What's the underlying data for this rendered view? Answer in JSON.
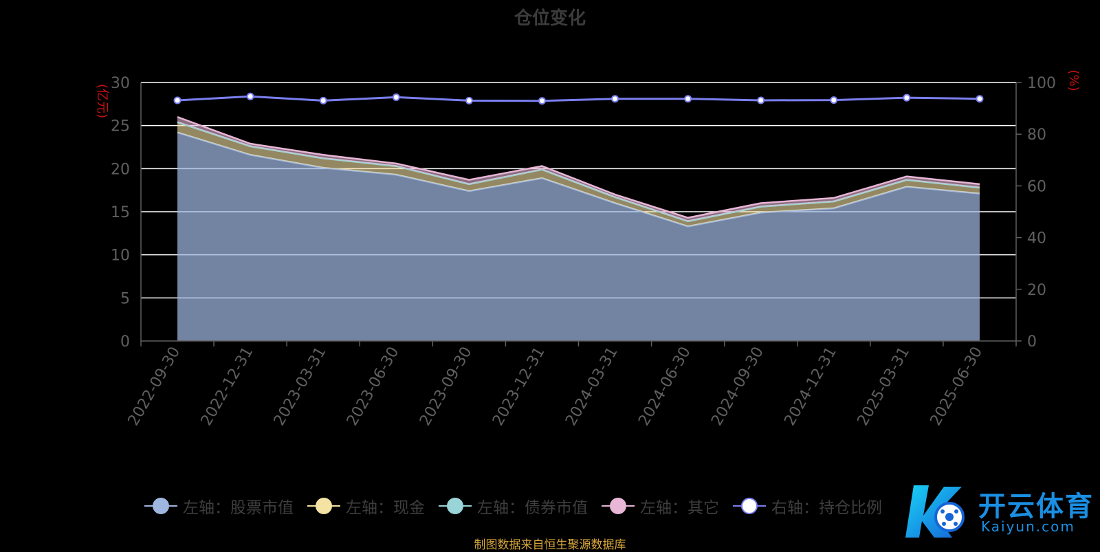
{
  "chart_data": {
    "type": "area",
    "title": "仓位变化",
    "left_axis_label": "(亿元)",
    "right_axis_label": "(%)",
    "left_ylim": [
      0,
      30
    ],
    "left_ticks": [
      0,
      5,
      10,
      15,
      20,
      25,
      30
    ],
    "right_ylim": [
      0,
      100
    ],
    "right_ticks": [
      0,
      20,
      40,
      60,
      80,
      100
    ],
    "grid": true,
    "legend_position": "bottom",
    "categories": [
      "2022-09-30",
      "2022-12-31",
      "2023-03-31",
      "2023-06-30",
      "2023-09-30",
      "2023-12-31",
      "2024-03-31",
      "2024-06-30",
      "2024-09-30",
      "2024-12-31",
      "2025-03-31",
      "2025-06-30"
    ],
    "series": [
      {
        "name": "左轴：股票市值",
        "type": "stacked-area",
        "axis": "left",
        "color": "#9fb7e0",
        "values": [
          24.2,
          21.6,
          20.1,
          19.3,
          17.4,
          18.9,
          16.0,
          13.3,
          14.9,
          15.4,
          17.9,
          17.1
        ]
      },
      {
        "name": "左轴：现金",
        "type": "stacked-area",
        "axis": "left",
        "color": "#f5e3a3",
        "values": [
          1.2,
          1.0,
          1.1,
          1.0,
          0.8,
          1.0,
          0.7,
          0.6,
          0.7,
          0.8,
          0.8,
          0.7
        ]
      },
      {
        "name": "左轴：债券市值",
        "type": "stacked-area",
        "axis": "left",
        "color": "#99d5d8",
        "values": [
          0,
          0,
          0,
          0,
          0,
          0,
          0,
          0,
          0,
          0,
          0,
          0
        ]
      },
      {
        "name": "左轴：其它",
        "type": "stacked-area",
        "axis": "left",
        "color": "#e8b6d6",
        "values": [
          0.6,
          0.3,
          0.4,
          0.3,
          0.5,
          0.4,
          0.3,
          0.4,
          0.4,
          0.4,
          0.4,
          0.4
        ]
      },
      {
        "name": "右轴：持仓比例",
        "type": "line",
        "axis": "right",
        "color": "#7b7ff0",
        "values": [
          93.1,
          94.6,
          93.0,
          94.3,
          93.0,
          92.9,
          93.7,
          93.7,
          93.1,
          93.2,
          94.1,
          93.7
        ]
      }
    ]
  },
  "legend": [
    {
      "label": "左轴：股票市值",
      "color": "#9fb7e0"
    },
    {
      "label": "左轴：现金",
      "color": "#f5e3a3"
    },
    {
      "label": "左轴：债券市值",
      "color": "#99d5d8"
    },
    {
      "label": "左轴：其它",
      "color": "#e8b6d6"
    },
    {
      "label": "右轴：持仓比例",
      "color": "#7b7ff0"
    }
  ],
  "source_note": "制图数据来自恒生聚源数据库",
  "watermark": {
    "brand_cn": "开云体育",
    "brand_en": "Kaiyun.com"
  },
  "colors": {
    "axis_text": "#5f5f5f",
    "axis_label": "#cc1111",
    "grid": "#ffffff",
    "background": "#000000"
  }
}
